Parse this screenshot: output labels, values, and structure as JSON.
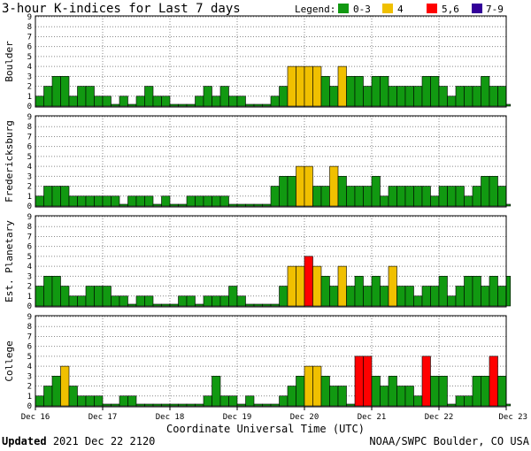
{
  "title": "3-hour K-indices for Last 7 days",
  "legend": {
    "label": "Legend:",
    "items": [
      {
        "label": "0-3",
        "color": "#119911"
      },
      {
        "label": "4",
        "color": "#f0c000"
      },
      {
        "label": "5,6",
        "color": "#ff0000"
      },
      {
        "label": "7-9",
        "color": "#330099"
      }
    ]
  },
  "footer": {
    "updated_label": "Updated",
    "updated_value": "2021 Dec 22 2120",
    "source": "NOAA/SWPC Boulder, CO USA"
  },
  "chart_data": {
    "type": "bar",
    "xlabel": "Coordinate Universal Time (UTC)",
    "x_ticks": [
      "Dec 16",
      "Dec 17",
      "Dec 18",
      "Dec 19",
      "Dec 20",
      "Dec 21",
      "Dec 22",
      "Dec 23"
    ],
    "y_ticks": [
      "0",
      "1",
      "2",
      "3",
      "4",
      "5",
      "6",
      "7",
      "8",
      "9"
    ],
    "ylim": [
      0,
      9
    ],
    "bars_per_day": 8,
    "colors": {
      "0-3": "#119911",
      "4": "#f0c000",
      "5,6": "#ff0000",
      "7-9": "#330099"
    },
    "series": [
      {
        "name": "Boulder",
        "values": [
          1,
          2,
          3,
          3,
          1,
          2,
          2,
          1,
          1,
          0,
          1,
          0,
          1,
          2,
          1,
          1,
          0,
          0,
          0,
          1,
          2,
          1,
          2,
          1,
          1,
          0,
          0,
          0,
          1,
          2,
          4,
          4,
          4,
          4,
          3,
          2,
          4,
          3,
          3,
          2,
          3,
          3,
          2,
          2,
          2,
          2,
          3,
          3,
          2,
          1,
          2,
          2,
          2,
          3,
          2,
          2,
          0
        ]
      },
      {
        "name": "Fredericksburg",
        "values": [
          1,
          2,
          2,
          2,
          1,
          1,
          1,
          1,
          1,
          1,
          0,
          1,
          1,
          1,
          0,
          1,
          0,
          0,
          1,
          1,
          1,
          1,
          1,
          0,
          0,
          0,
          0,
          0,
          2,
          3,
          3,
          4,
          4,
          2,
          2,
          4,
          3,
          2,
          2,
          2,
          3,
          1,
          2,
          2,
          2,
          2,
          2,
          1,
          2,
          2,
          2,
          1,
          2,
          3,
          3,
          2,
          0
        ]
      },
      {
        "name": "Est. Planetary",
        "values": [
          2,
          3,
          3,
          2,
          1,
          1,
          2,
          2,
          2,
          1,
          1,
          0,
          1,
          1,
          0,
          0,
          0,
          1,
          1,
          0,
          1,
          1,
          1,
          2,
          1,
          0,
          0,
          0,
          0,
          2,
          4,
          4,
          5,
          4,
          3,
          2,
          4,
          2,
          3,
          2,
          3,
          2,
          4,
          2,
          2,
          1,
          2,
          2,
          3,
          1,
          2,
          3,
          3,
          2,
          3,
          2,
          3
        ]
      },
      {
        "name": "College",
        "values": [
          1,
          2,
          3,
          4,
          2,
          1,
          1,
          1,
          0,
          0,
          1,
          1,
          0,
          0,
          0,
          0,
          0,
          0,
          0,
          0,
          1,
          3,
          1,
          1,
          0,
          1,
          0,
          0,
          0,
          1,
          2,
          3,
          4,
          4,
          3,
          2,
          2,
          0,
          5,
          5,
          3,
          2,
          3,
          2,
          2,
          1,
          5,
          3,
          3,
          0,
          1,
          1,
          3,
          3,
          5,
          3,
          0
        ]
      }
    ]
  }
}
